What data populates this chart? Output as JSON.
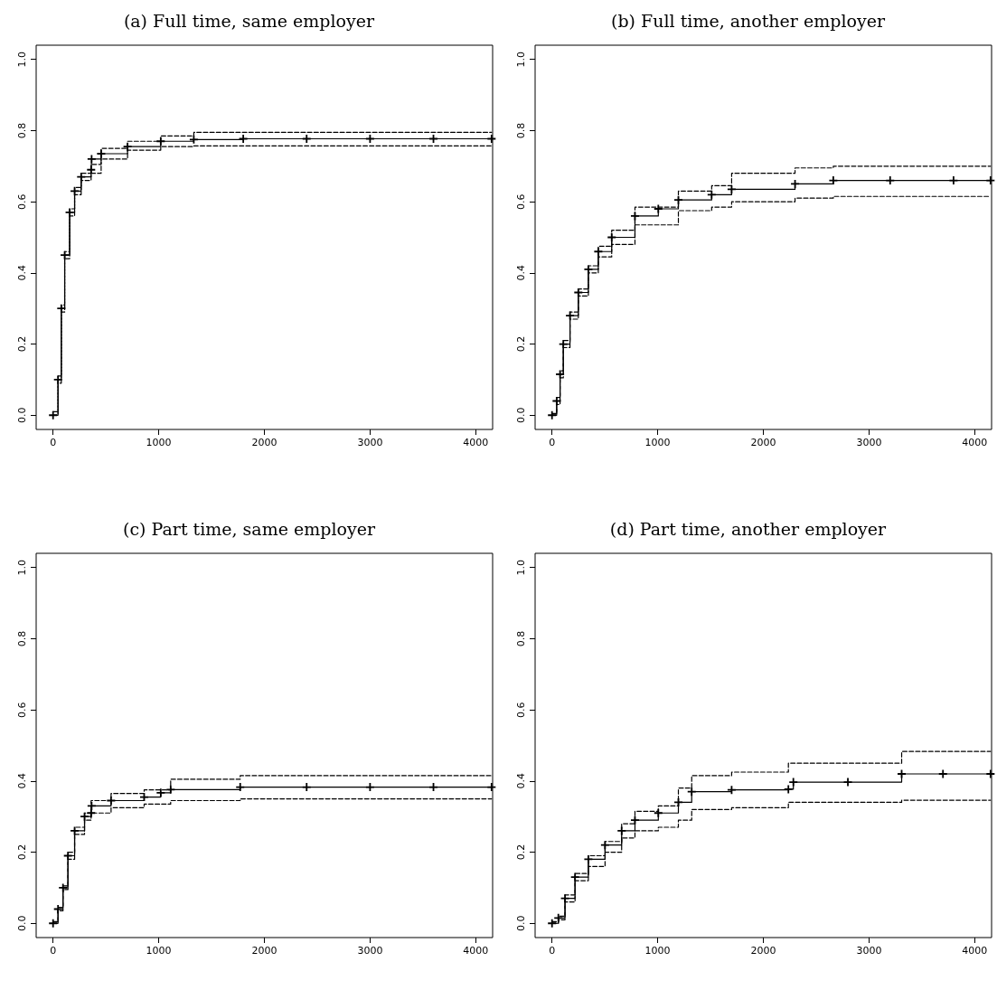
{
  "chart_data": [
    {
      "type": "step",
      "title": "(a) Full time, same employer",
      "xlim": [
        -160,
        4160
      ],
      "ylim": [
        -0.04,
        1.04
      ],
      "xticks": [
        0,
        1000,
        2000,
        3000,
        4000
      ],
      "yticks": [
        {
          "value": 0,
          "label": "0.0"
        },
        {
          "value": 0.2,
          "label": "0.2"
        },
        {
          "value": 0.4,
          "label": "0.4"
        },
        {
          "value": 0.6,
          "label": "0.6"
        },
        {
          "value": 0.8,
          "label": "0.8"
        },
        {
          "value": 1,
          "label": "1.0"
        }
      ],
      "grid": false,
      "series": [
        {
          "color": "#000000",
          "marker": "cross",
          "line_style": "solid",
          "x": [
            0,
            47,
            78,
            110,
            157,
            204,
            266,
            360,
            365,
            455,
            705,
            1019,
            1332,
            1800,
            2400,
            3000,
            3600,
            4150
          ],
          "values": [
            0,
            0.1,
            0.3,
            0.45,
            0.57,
            0.63,
            0.67,
            0.69,
            0.72,
            0.735,
            0.755,
            0.77,
            0.775,
            0.777,
            0.777,
            0.777,
            0.777,
            0.777
          ]
        },
        {
          "color": "#000000",
          "marker": "none",
          "line_style": "dashed",
          "x": [
            0,
            47,
            78,
            110,
            157,
            204,
            266,
            360,
            455,
            705,
            1019,
            1332,
            4150
          ],
          "values": [
            0.01,
            0.11,
            0.31,
            0.46,
            0.58,
            0.64,
            0.68,
            0.705,
            0.75,
            0.77,
            0.785,
            0.795,
            0.795
          ]
        },
        {
          "color": "#000000",
          "marker": "none",
          "line_style": "dashed",
          "x": [
            0,
            47,
            78,
            110,
            157,
            204,
            266,
            360,
            455,
            705,
            1019,
            1332,
            4150
          ],
          "values": [
            0,
            0.09,
            0.29,
            0.44,
            0.56,
            0.62,
            0.66,
            0.68,
            0.72,
            0.745,
            0.755,
            0.757,
            0.757
          ]
        }
      ]
    },
    {
      "type": "step",
      "title": "(b) Full time, another employer",
      "xlim": [
        -160,
        4160
      ],
      "ylim": [
        -0.04,
        1.04
      ],
      "xticks": [
        0,
        1000,
        2000,
        3000,
        4000
      ],
      "yticks": [
        {
          "value": 0,
          "label": "0.0"
        },
        {
          "value": 0.2,
          "label": "0.2"
        },
        {
          "value": 0.4,
          "label": "0.4"
        },
        {
          "value": 0.6,
          "label": "0.6"
        },
        {
          "value": 0.8,
          "label": "0.8"
        },
        {
          "value": 1,
          "label": "1.0"
        }
      ],
      "grid": false,
      "series": [
        {
          "color": "#000000",
          "marker": "cross",
          "line_style": "solid",
          "x": [
            0,
            44,
            76,
            107,
            170,
            249,
            344,
            438,
            565,
            785,
            1006,
            1196,
            1511,
            1700,
            2300,
            2662,
            3200,
            3800,
            4150
          ],
          "values": [
            0,
            0.04,
            0.115,
            0.2,
            0.28,
            0.345,
            0.41,
            0.46,
            0.5,
            0.56,
            0.58,
            0.605,
            0.62,
            0.635,
            0.65,
            0.66,
            0.66,
            0.66,
            0.66
          ]
        },
        {
          "color": "#000000",
          "marker": "none",
          "line_style": "dashed",
          "x": [
            0,
            44,
            76,
            107,
            170,
            249,
            344,
            438,
            565,
            785,
            1196,
            1511,
            1700,
            2300,
            2662,
            4150
          ],
          "values": [
            0.005,
            0.05,
            0.125,
            0.21,
            0.29,
            0.355,
            0.42,
            0.475,
            0.52,
            0.585,
            0.63,
            0.645,
            0.68,
            0.695,
            0.7,
            0.7
          ]
        },
        {
          "color": "#000000",
          "marker": "none",
          "line_style": "dashed",
          "x": [
            0,
            44,
            76,
            107,
            170,
            249,
            344,
            438,
            565,
            785,
            1196,
            1511,
            1700,
            2300,
            2662,
            4150
          ],
          "values": [
            0,
            0.03,
            0.105,
            0.19,
            0.27,
            0.335,
            0.4,
            0.445,
            0.48,
            0.535,
            0.575,
            0.585,
            0.6,
            0.61,
            0.615,
            0.615
          ]
        }
      ]
    },
    {
      "type": "step",
      "title": "(c) Part time, same employer",
      "xlim": [
        -160,
        4160
      ],
      "ylim": [
        -0.04,
        1.04
      ],
      "xticks": [
        0,
        1000,
        2000,
        3000,
        4000
      ],
      "yticks": [
        {
          "value": 0,
          "label": "0.0"
        },
        {
          "value": 0.2,
          "label": "0.2"
        },
        {
          "value": 0.4,
          "label": "0.4"
        },
        {
          "value": 0.6,
          "label": "0.6"
        },
        {
          "value": 0.8,
          "label": "0.8"
        },
        {
          "value": 1,
          "label": "1.0"
        }
      ],
      "grid": false,
      "series": [
        {
          "color": "#000000",
          "marker": "cross",
          "line_style": "solid",
          "x": [
            0,
            47,
            94,
            141,
            204,
            298,
            360,
            365,
            549,
            862,
            1019,
            1113,
            1771,
            2400,
            3000,
            3600,
            4150
          ],
          "values": [
            0,
            0.04,
            0.1,
            0.19,
            0.26,
            0.3,
            0.31,
            0.33,
            0.345,
            0.355,
            0.367,
            0.376,
            0.383,
            0.383,
            0.383,
            0.383,
            0.383
          ]
        },
        {
          "color": "#000000",
          "marker": "none",
          "line_style": "dashed",
          "x": [
            0,
            47,
            94,
            141,
            204,
            298,
            360,
            549,
            862,
            1113,
            1771,
            4150
          ],
          "values": [
            0.005,
            0.045,
            0.105,
            0.2,
            0.27,
            0.31,
            0.345,
            0.365,
            0.375,
            0.405,
            0.415,
            0.415
          ]
        },
        {
          "color": "#000000",
          "marker": "none",
          "line_style": "dashed",
          "x": [
            0,
            47,
            94,
            141,
            204,
            298,
            360,
            549,
            862,
            1113,
            1771,
            4150
          ],
          "values": [
            0,
            0.035,
            0.095,
            0.18,
            0.25,
            0.29,
            0.31,
            0.325,
            0.335,
            0.345,
            0.35,
            0.35
          ]
        }
      ]
    },
    {
      "type": "step",
      "title": "(d) Part time, another employer",
      "xlim": [
        -160,
        4160
      ],
      "ylim": [
        -0.04,
        1.04
      ],
      "xticks": [
        0,
        1000,
        2000,
        3000,
        4000
      ],
      "yticks": [
        {
          "value": 0,
          "label": "0.0"
        },
        {
          "value": 0.2,
          "label": "0.2"
        },
        {
          "value": 0.4,
          "label": "0.4"
        },
        {
          "value": 0.6,
          "label": "0.6"
        },
        {
          "value": 0.8,
          "label": "0.8"
        },
        {
          "value": 1,
          "label": "1.0"
        }
      ],
      "grid": false,
      "series": [
        {
          "color": "#000000",
          "marker": "cross",
          "line_style": "solid",
          "x": [
            0,
            60,
            123,
            218,
            344,
            502,
            659,
            785,
            1006,
            1196,
            1322,
            1700,
            2237,
            2284,
            2800,
            3309,
            3700,
            4150
          ],
          "values": [
            0,
            0.015,
            0.07,
            0.13,
            0.18,
            0.22,
            0.26,
            0.29,
            0.31,
            0.34,
            0.37,
            0.375,
            0.377,
            0.397,
            0.397,
            0.42,
            0.42,
            0.42
          ]
        },
        {
          "color": "#000000",
          "marker": "none",
          "line_style": "dashed",
          "x": [
            0,
            60,
            123,
            218,
            344,
            502,
            659,
            785,
            1006,
            1196,
            1322,
            1700,
            2237,
            3309,
            4150
          ],
          "values": [
            0.005,
            0.02,
            0.08,
            0.14,
            0.19,
            0.23,
            0.28,
            0.315,
            0.33,
            0.38,
            0.415,
            0.425,
            0.45,
            0.483,
            0.483
          ]
        },
        {
          "color": "#000000",
          "marker": "none",
          "line_style": "dashed",
          "x": [
            0,
            60,
            123,
            218,
            344,
            502,
            659,
            785,
            1006,
            1196,
            1322,
            1700,
            2237,
            3309,
            4150
          ],
          "values": [
            0,
            0.01,
            0.06,
            0.12,
            0.16,
            0.2,
            0.24,
            0.26,
            0.27,
            0.29,
            0.32,
            0.325,
            0.34,
            0.346,
            0.346
          ]
        }
      ]
    }
  ]
}
